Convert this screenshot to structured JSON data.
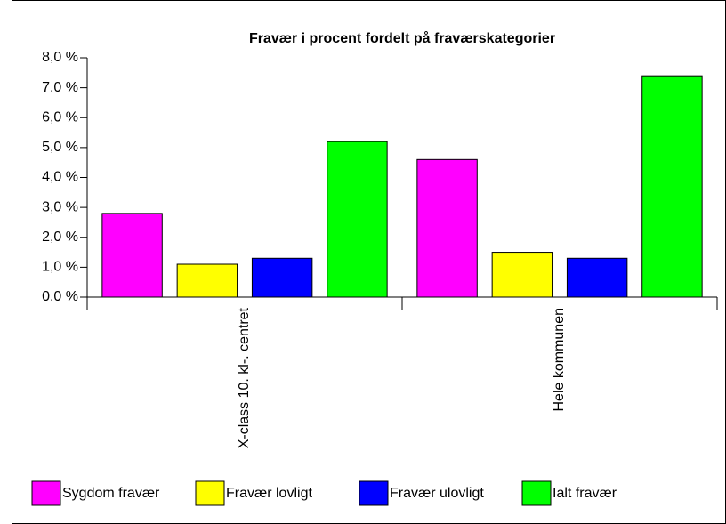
{
  "chart_data": {
    "type": "bar",
    "title": "Fravær i procent fordelt på fraværskategorier",
    "categories": [
      "X-class 10. kl-. centret",
      "Hele kommunen"
    ],
    "series": [
      {
        "name": "Sygdom fravær",
        "color": "#ff00ff",
        "values": [
          2.8,
          4.6
        ]
      },
      {
        "name": "Fravær lovligt",
        "color": "#ffff00",
        "values": [
          1.1,
          1.5
        ]
      },
      {
        "name": "Fravær ulovligt",
        "color": "#0000ff",
        "values": [
          1.3,
          1.3
        ]
      },
      {
        "name": "Ialt fravær",
        "color": "#00ff00",
        "values": [
          5.2,
          7.4
        ]
      }
    ],
    "ylim": [
      0,
      8
    ],
    "yticks": [
      {
        "value": 0,
        "label": "0,0 %"
      },
      {
        "value": 1,
        "label": "1,0 %"
      },
      {
        "value": 2,
        "label": "2,0 %"
      },
      {
        "value": 3,
        "label": "3,0 %"
      },
      {
        "value": 4,
        "label": "4,0 %"
      },
      {
        "value": 5,
        "label": "5,0 %"
      },
      {
        "value": 6,
        "label": "6,0 %"
      },
      {
        "value": 7,
        "label": "7,0 %"
      },
      {
        "value": 8,
        "label": "8,0 %"
      }
    ],
    "legend": "bottom"
  }
}
